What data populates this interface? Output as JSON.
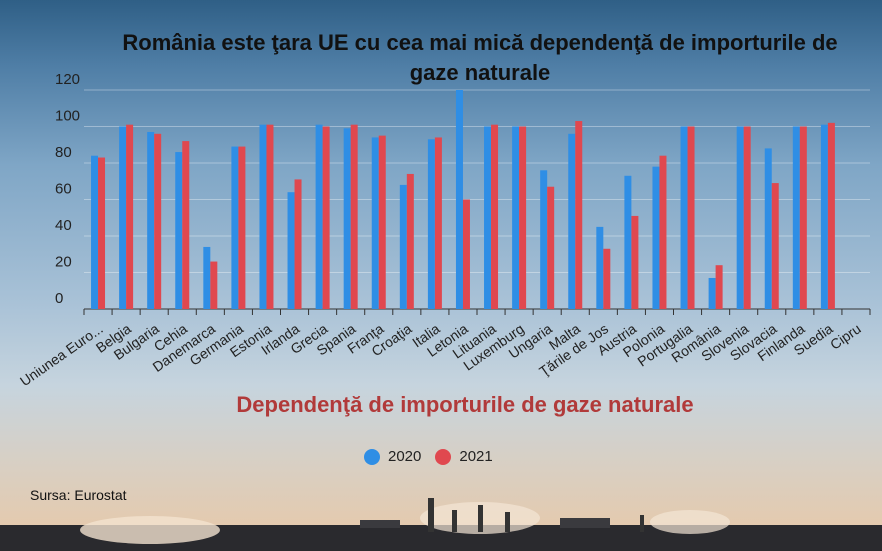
{
  "title": "România este ţara UE cu cea mai mică dependenţă de importurile de gaze naturale",
  "source": "Sursa: Eurostat",
  "chart_data": {
    "type": "bar",
    "title": "România este ţara UE cu cea mai mică dependenţă de importurile de gaze naturale",
    "subtitle": "Dependenţă de importurile de gaze naturale",
    "xlabel": "",
    "ylabel": "",
    "ylim": [
      0,
      120
    ],
    "yticks": [
      0,
      20,
      40,
      60,
      80,
      100,
      120
    ],
    "grid": true,
    "legend_position": "bottom",
    "categories": [
      "Uniunea Euro...",
      "Belgia",
      "Bulgaria",
      "Cehia",
      "Danemarca",
      "Germania",
      "Estonia",
      "Irlanda",
      "Grecia",
      "Spania",
      "Franţa",
      "Croaţia",
      "Italia",
      "Letonia",
      "Lituania",
      "Luxemburg",
      "Ungaria",
      "Malta",
      "Ţările de Jos",
      "Austria",
      "Polonia",
      "Portugalia",
      "România",
      "Slovenia",
      "Slovacia",
      "Finlanda",
      "Suedia",
      "Cipru"
    ],
    "series": [
      {
        "name": "2020",
        "color": "#2f8ee5",
        "values": [
          84,
          100,
          97,
          86,
          34,
          89,
          101,
          64,
          101,
          99,
          94,
          68,
          93,
          120,
          100,
          100,
          76,
          96,
          45,
          73,
          78,
          100,
          17,
          100,
          88,
          100,
          101,
          0
        ]
      },
      {
        "name": "2021",
        "color": "#e0484f",
        "values": [
          83,
          101,
          96,
          92,
          26,
          89,
          101,
          71,
          100,
          101,
          95,
          74,
          94,
          60,
          101,
          100,
          67,
          103,
          33,
          51,
          84,
          100,
          24,
          100,
          69,
          100,
          102,
          0
        ]
      }
    ]
  }
}
